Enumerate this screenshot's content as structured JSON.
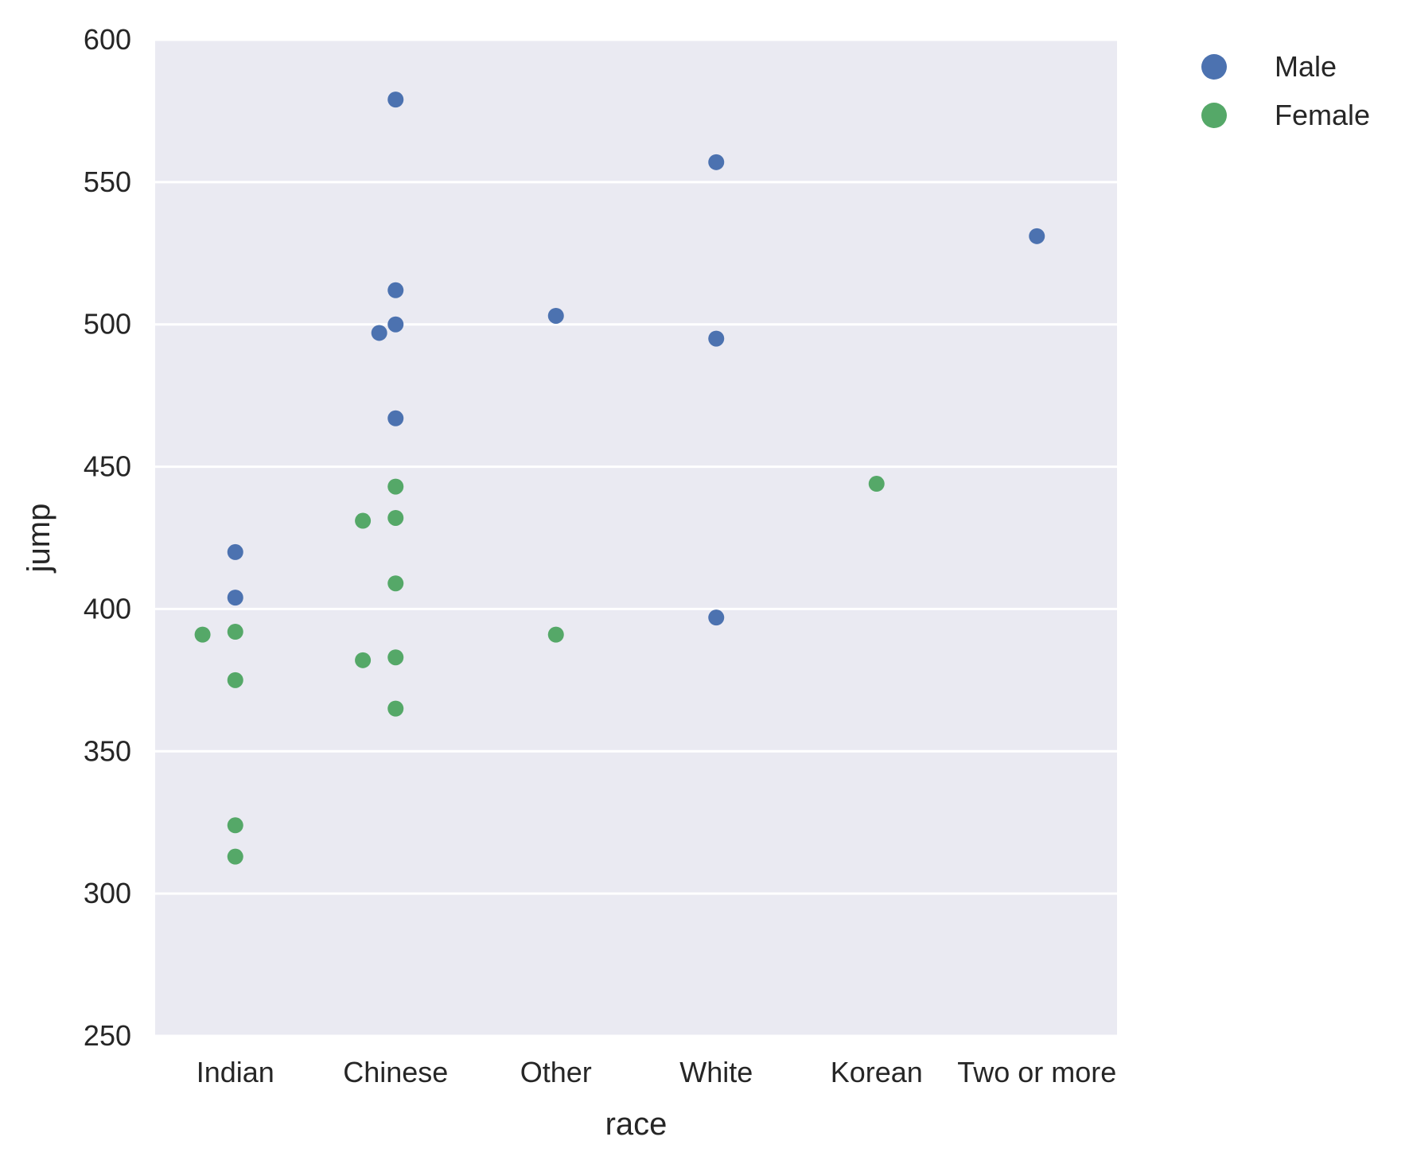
{
  "chart_data": {
    "type": "scatter",
    "style": "categorical strip plot (swarm-like)",
    "xlabel": "race",
    "ylabel": "jump",
    "categories": [
      "Indian",
      "Chinese",
      "Other",
      "White",
      "Korean",
      "Two or more"
    ],
    "ylim": [
      250,
      600
    ],
    "yticks": [
      250,
      300,
      350,
      400,
      450,
      500,
      550,
      600
    ],
    "grid": "horizontal, white on light gray background",
    "background_color": "#eaeaf2",
    "legend_position": "outside top-right",
    "series": [
      {
        "name": "Male",
        "color": "#4c72b0",
        "points": [
          {
            "category": "Indian",
            "value": 420
          },
          {
            "category": "Indian",
            "value": 404
          },
          {
            "category": "Chinese",
            "value": 579
          },
          {
            "category": "Chinese",
            "value": 512
          },
          {
            "category": "Chinese",
            "value": 500
          },
          {
            "category": "Chinese",
            "value": 497
          },
          {
            "category": "Chinese",
            "value": 467
          },
          {
            "category": "Other",
            "value": 503
          },
          {
            "category": "White",
            "value": 557
          },
          {
            "category": "White",
            "value": 495
          },
          {
            "category": "White",
            "value": 397
          },
          {
            "category": "Two or more",
            "value": 531
          }
        ]
      },
      {
        "name": "Female",
        "color": "#55a868",
        "points": [
          {
            "category": "Indian",
            "value": 392
          },
          {
            "category": "Indian",
            "value": 391
          },
          {
            "category": "Indian",
            "value": 375
          },
          {
            "category": "Indian",
            "value": 324
          },
          {
            "category": "Indian",
            "value": 313
          },
          {
            "category": "Chinese",
            "value": 443
          },
          {
            "category": "Chinese",
            "value": 432
          },
          {
            "category": "Chinese",
            "value": 431
          },
          {
            "category": "Chinese",
            "value": 409
          },
          {
            "category": "Chinese",
            "value": 383
          },
          {
            "category": "Chinese",
            "value": 382
          },
          {
            "category": "Chinese",
            "value": 365
          },
          {
            "category": "Other",
            "value": 391
          },
          {
            "category": "Korean",
            "value": 444
          }
        ]
      }
    ]
  }
}
